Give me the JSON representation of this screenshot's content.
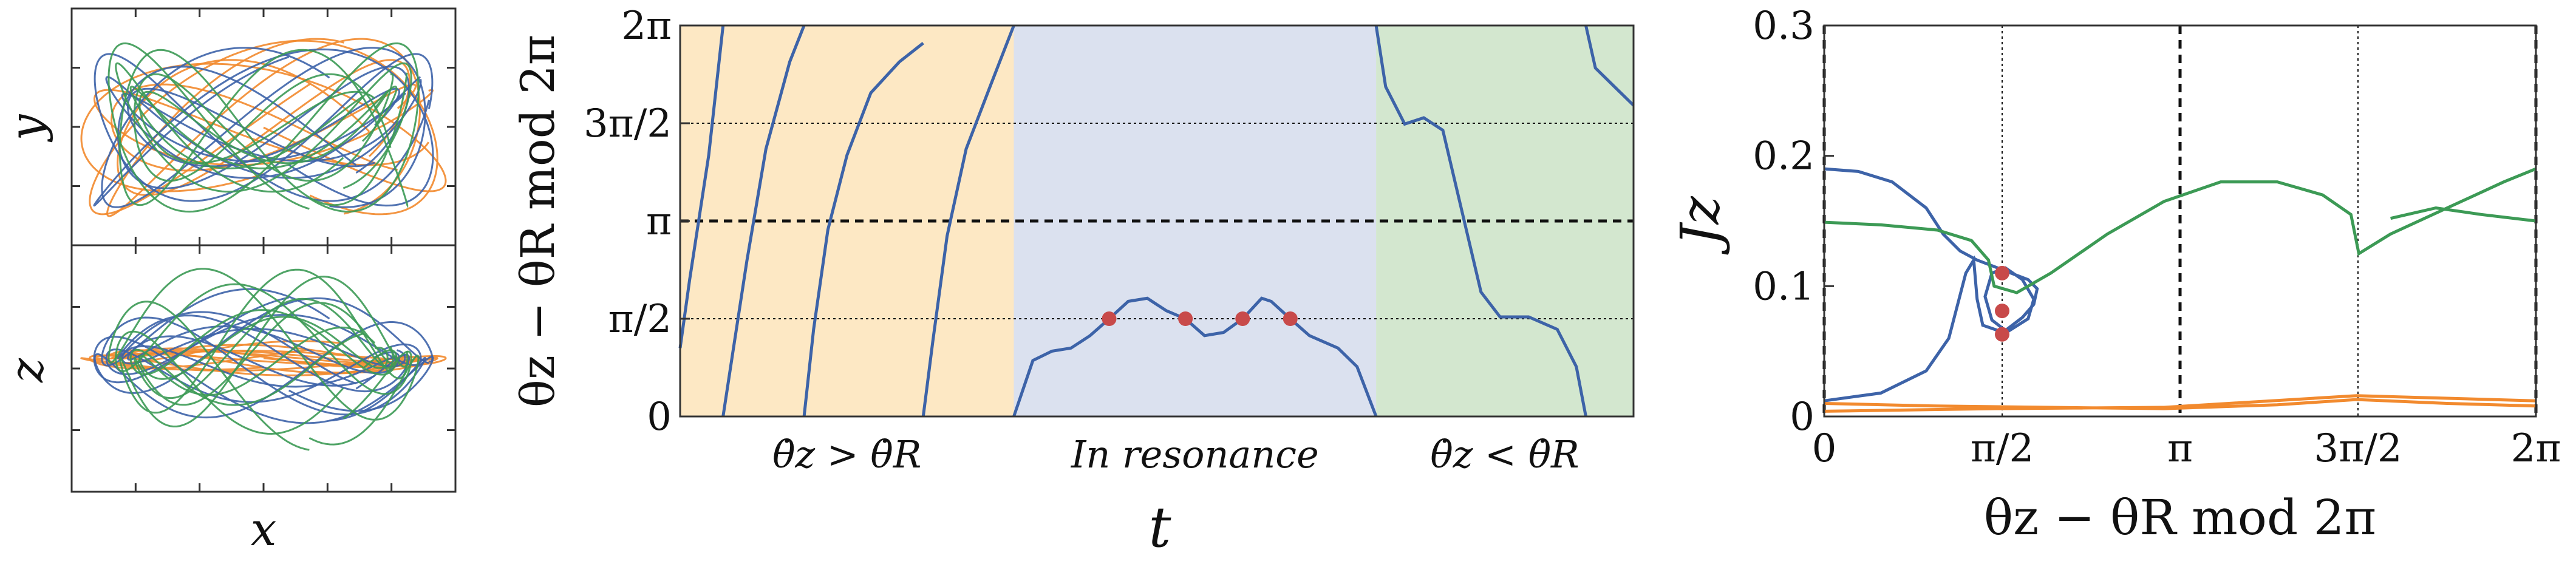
{
  "colors": {
    "blue": "#3d63a8",
    "green": "#3c9a55",
    "orange": "#f28a2e",
    "red_marker": "#c84a4a",
    "band_orange": "#fde8c4",
    "band_blue": "#dbe1ef",
    "band_green": "#d3e7cf"
  },
  "chart_data": [
    {
      "id": "orbit-projections",
      "type": "line",
      "panels": [
        {
          "ylabel": "y",
          "xlabel": ""
        },
        {
          "ylabel": "z",
          "xlabel": "x"
        }
      ],
      "series": [
        {
          "color": "orange"
        },
        {
          "color": "blue"
        },
        {
          "color": "green"
        }
      ]
    },
    {
      "id": "phase-vs-time",
      "type": "line",
      "xlabel": "t",
      "ylabel": "θz − θR mod 2π",
      "ylim": [
        0,
        6.2832
      ],
      "yticks": [
        {
          "value": 0,
          "label": "0"
        },
        {
          "value": 1.5708,
          "label": "π/2"
        },
        {
          "value": 3.1416,
          "label": "π"
        },
        {
          "value": 4.7124,
          "label": "3π/2"
        },
        {
          "value": 6.2832,
          "label": "2π"
        }
      ],
      "regions": [
        {
          "label": "θ̇z > θ̇R",
          "t_range": [
            0,
            0.35
          ],
          "color": "band_orange"
        },
        {
          "label": "In resonance",
          "t_range": [
            0.35,
            0.73
          ],
          "color": "band_blue"
        },
        {
          "label": "θ̇z < θ̇R",
          "t_range": [
            0.73,
            1.0
          ],
          "color": "band_green"
        }
      ],
      "series": [
        {
          "color": "blue",
          "points": [
            [
              0,
              1.1
            ],
            [
              0.01,
              2.2
            ],
            [
              0.03,
              4.2
            ],
            [
              0.045,
              6.283
            ],
            null,
            [
              0.045,
              0
            ],
            [
              0.055,
              1.0
            ],
            [
              0.07,
              2.5
            ],
            [
              0.09,
              4.3
            ],
            [
              0.115,
              5.7
            ],
            [
              0.13,
              6.283
            ],
            null,
            [
              0.13,
              0
            ],
            [
              0.14,
              1.4
            ],
            [
              0.155,
              3.0
            ],
            [
              0.175,
              4.2
            ],
            [
              0.2,
              5.2
            ],
            [
              0.23,
              5.7
            ],
            [
              0.255,
              6.0
            ],
            null,
            [
              0.255,
              0
            ],
            [
              0.265,
              1.2
            ],
            [
              0.28,
              2.9
            ],
            [
              0.3,
              4.3
            ],
            [
              0.325,
              5.3
            ],
            [
              0.35,
              6.283
            ],
            null,
            [
              0.35,
              0
            ],
            [
              0.37,
              0.9
            ],
            [
              0.39,
              1.05
            ],
            [
              0.41,
              1.1
            ],
            [
              0.43,
              1.3
            ],
            [
              0.45,
              1.57
            ],
            [
              0.47,
              1.85
            ],
            [
              0.49,
              1.9
            ],
            [
              0.51,
              1.7
            ],
            [
              0.53,
              1.57
            ],
            [
              0.55,
              1.3
            ],
            [
              0.57,
              1.35
            ],
            [
              0.59,
              1.57
            ],
            [
              0.61,
              1.9
            ],
            [
              0.62,
              1.85
            ],
            [
              0.64,
              1.57
            ],
            [
              0.66,
              1.3
            ],
            [
              0.69,
              1.1
            ],
            [
              0.71,
              0.8
            ],
            [
              0.73,
              0
            ],
            null,
            [
              0.73,
              6.283
            ],
            [
              0.74,
              5.3
            ],
            [
              0.76,
              4.7
            ],
            [
              0.78,
              4.8
            ],
            [
              0.8,
              4.6
            ],
            [
              0.82,
              3.3
            ],
            [
              0.84,
              2.0
            ],
            [
              0.86,
              1.6
            ],
            [
              0.89,
              1.6
            ],
            [
              0.92,
              1.4
            ],
            [
              0.94,
              0.8
            ],
            [
              0.95,
              0
            ],
            null,
            [
              0.95,
              6.283
            ],
            [
              0.96,
              5.6
            ],
            [
              0.98,
              5.3
            ],
            [
              1.0,
              5.0
            ]
          ]
        }
      ],
      "markers": [
        [
          0.45,
          1.5708
        ],
        [
          0.53,
          1.5708
        ],
        [
          0.59,
          1.5708
        ],
        [
          0.64,
          1.5708
        ]
      ]
    },
    {
      "id": "jz-vs-phase",
      "type": "line",
      "xlabel": "θz − θR mod 2π",
      "ylabel": "Jz",
      "ylim": [
        0,
        0.3
      ],
      "xlim": [
        0,
        6.2832
      ],
      "yticks": [
        {
          "value": 0,
          "label": "0"
        },
        {
          "value": 0.1,
          "label": "0.1"
        },
        {
          "value": 0.2,
          "label": "0.2"
        },
        {
          "value": 0.3,
          "label": "0.3"
        }
      ],
      "xticks": [
        {
          "value": 0,
          "label": "0"
        },
        {
          "value": 1.5708,
          "label": "π/2"
        },
        {
          "value": 3.1416,
          "label": "π"
        },
        {
          "value": 4.7124,
          "label": "3π/2"
        },
        {
          "value": 6.2832,
          "label": "2π"
        }
      ],
      "series": [
        {
          "color": "blue",
          "points": [
            [
              0,
              0.19
            ],
            [
              0.3,
              0.188
            ],
            [
              0.6,
              0.18
            ],
            [
              0.9,
              0.16
            ],
            [
              1.05,
              0.14
            ],
            [
              1.2,
              0.127
            ],
            [
              1.35,
              0.12
            ],
            [
              1.5,
              0.115
            ],
            [
              1.65,
              0.11
            ],
            [
              1.8,
              0.105
            ],
            [
              1.88,
              0.098
            ],
            [
              1.85,
              0.086
            ],
            [
              1.75,
              0.076
            ],
            [
              1.6,
              0.066
            ],
            [
              1.48,
              0.074
            ],
            [
              1.42,
              0.092
            ],
            [
              1.48,
              0.11
            ],
            [
              1.6,
              0.114
            ],
            [
              1.75,
              0.105
            ],
            [
              1.85,
              0.09
            ],
            [
              1.8,
              0.075
            ],
            [
              1.6,
              0.064
            ],
            [
              1.4,
              0.07
            ],
            [
              1.35,
              0.09
            ],
            [
              1.32,
              0.12
            ],
            [
              1.25,
              0.11
            ],
            [
              1.1,
              0.06
            ],
            [
              0.9,
              0.035
            ],
            [
              0.5,
              0.018
            ],
            [
              0,
              0.012
            ]
          ]
        },
        {
          "color": "green",
          "points": [
            [
              0,
              0.149
            ],
            [
              0.5,
              0.147
            ],
            [
              1.0,
              0.143
            ],
            [
              1.3,
              0.135
            ],
            [
              1.45,
              0.12
            ],
            [
              1.5,
              0.1
            ],
            [
              1.7,
              0.095
            ],
            [
              2.0,
              0.11
            ],
            [
              2.5,
              0.14
            ],
            [
              3.0,
              0.165
            ],
            [
              3.5,
              0.18
            ],
            [
              4.0,
              0.18
            ],
            [
              4.4,
              0.17
            ],
            [
              4.65,
              0.155
            ],
            [
              4.72,
              0.125
            ],
            [
              5.0,
              0.14
            ],
            [
              5.5,
              0.16
            ],
            [
              6.0,
              0.18
            ],
            [
              6.2832,
              0.19
            ],
            null,
            [
              5.0,
              0.152
            ],
            [
              5.4,
              0.16
            ],
            [
              5.8,
              0.155
            ],
            [
              6.2832,
              0.15
            ]
          ]
        },
        {
          "color": "orange",
          "points": [
            [
              0,
              0.01
            ],
            [
              1,
              0.008
            ],
            [
              2,
              0.007
            ],
            [
              3,
              0.006
            ],
            [
              4,
              0.009
            ],
            [
              4.7,
              0.013
            ],
            [
              5.5,
              0.01
            ],
            [
              6.2832,
              0.008
            ],
            null,
            [
              0,
              0.004
            ],
            [
              1.5,
              0.006
            ],
            [
              3,
              0.007
            ],
            [
              4.7,
              0.016
            ],
            [
              6.2832,
              0.012
            ]
          ]
        }
      ],
      "markers": [
        [
          1.5708,
          0.11
        ],
        [
          1.5708,
          0.081
        ],
        [
          1.5708,
          0.063
        ]
      ]
    }
  ]
}
